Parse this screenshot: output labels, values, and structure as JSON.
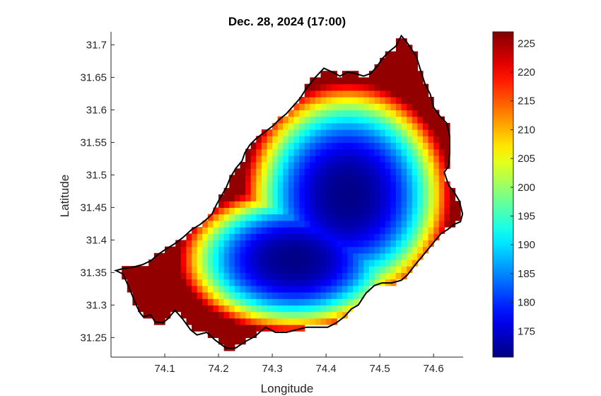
{
  "chart_data": {
    "type": "heatmap",
    "title": "Dec. 28, 2024 (17:00)",
    "xlabel": "Longitude",
    "ylabel": "Latitude",
    "xlim": [
      74.0,
      74.655
    ],
    "ylim": [
      31.22,
      31.72
    ],
    "xticks": [
      74.1,
      74.2,
      74.3,
      74.4,
      74.5,
      74.6
    ],
    "xtick_labels": [
      "74.1",
      "74.2",
      "74.3",
      "74.4",
      "74.5",
      "74.6"
    ],
    "yticks": [
      31.25,
      31.3,
      31.35,
      31.4,
      31.45,
      31.5,
      31.55,
      31.6,
      31.65,
      31.7
    ],
    "ytick_labels": [
      "31.25",
      "31.3",
      "31.35",
      "31.4",
      "31.45",
      "31.5",
      "31.55",
      "31.6",
      "31.65",
      "31.7"
    ],
    "colormap": "jet",
    "clim": [
      170.5,
      227
    ],
    "colorbar_ticks": [
      175,
      180,
      185,
      190,
      195,
      200,
      205,
      210,
      215,
      220,
      225
    ],
    "colorbar_tick_labels": [
      "175",
      "180",
      "185",
      "190",
      "195",
      "200",
      "205",
      "210",
      "215",
      "220",
      "225"
    ],
    "field": {
      "min_value": 171,
      "max_value": 226,
      "min_location": {
        "lon": 74.44,
        "lat": 31.47
      },
      "secondary_low": {
        "lon": 74.34,
        "lat": 31.37
      },
      "grid_step_deg": 0.01,
      "outline_color": "#000000"
    },
    "boundary": [
      [
        74.009,
        31.353
      ],
      [
        74.022,
        31.348
      ],
      [
        74.033,
        31.328
      ],
      [
        74.042,
        31.31
      ],
      [
        74.048,
        31.298
      ],
      [
        74.054,
        31.288
      ],
      [
        74.06,
        31.282
      ],
      [
        74.074,
        31.285
      ],
      [
        74.082,
        31.274
      ],
      [
        74.097,
        31.273
      ],
      [
        74.106,
        31.279
      ],
      [
        74.119,
        31.292
      ],
      [
        74.133,
        31.279
      ],
      [
        74.148,
        31.262
      ],
      [
        74.16,
        31.254
      ],
      [
        74.178,
        31.258
      ],
      [
        74.194,
        31.246
      ],
      [
        74.214,
        31.234
      ],
      [
        74.232,
        31.234
      ],
      [
        74.248,
        31.243
      ],
      [
        74.268,
        31.252
      ],
      [
        74.287,
        31.266
      ],
      [
        74.306,
        31.258
      ],
      [
        74.326,
        31.258
      ],
      [
        74.345,
        31.262
      ],
      [
        74.364,
        31.266
      ],
      [
        74.383,
        31.266
      ],
      [
        74.403,
        31.266
      ],
      [
        74.418,
        31.272
      ],
      [
        74.434,
        31.282
      ],
      [
        74.447,
        31.294
      ],
      [
        74.46,
        31.3
      ],
      [
        74.474,
        31.318
      ],
      [
        74.49,
        31.33
      ],
      [
        74.504,
        31.334
      ],
      [
        74.522,
        31.334
      ],
      [
        74.54,
        31.338
      ],
      [
        74.551,
        31.346
      ],
      [
        74.566,
        31.362
      ],
      [
        74.58,
        31.376
      ],
      [
        74.594,
        31.39
      ],
      [
        74.604,
        31.4
      ],
      [
        74.614,
        31.41
      ],
      [
        74.626,
        31.416
      ],
      [
        74.638,
        31.424
      ],
      [
        74.65,
        31.428
      ],
      [
        74.654,
        31.44
      ],
      [
        74.648,
        31.46
      ],
      [
        74.638,
        31.474
      ],
      [
        74.628,
        31.484
      ],
      [
        74.62,
        31.504
      ],
      [
        74.628,
        31.514
      ],
      [
        74.63,
        31.534
      ],
      [
        74.63,
        31.56
      ],
      [
        74.624,
        31.58
      ],
      [
        74.612,
        31.59
      ],
      [
        74.6,
        31.604
      ],
      [
        74.594,
        31.624
      ],
      [
        74.584,
        31.64
      ],
      [
        74.577,
        31.658
      ],
      [
        74.568,
        31.682
      ],
      [
        74.552,
        31.702
      ],
      [
        74.54,
        31.714
      ],
      [
        74.53,
        31.698
      ],
      [
        74.518,
        31.69
      ],
      [
        74.506,
        31.68
      ],
      [
        74.494,
        31.666
      ],
      [
        74.483,
        31.656
      ],
      [
        74.47,
        31.652
      ],
      [
        74.454,
        31.656
      ],
      [
        74.44,
        31.658
      ],
      [
        74.426,
        31.652
      ],
      [
        74.412,
        31.658
      ],
      [
        74.396,
        31.664
      ],
      [
        74.38,
        31.65
      ],
      [
        74.364,
        31.634
      ],
      [
        74.352,
        31.618
      ],
      [
        74.339,
        31.606
      ],
      [
        74.326,
        31.594
      ],
      [
        74.314,
        31.586
      ],
      [
        74.302,
        31.576
      ],
      [
        74.286,
        31.566
      ],
      [
        74.27,
        31.556
      ],
      [
        74.258,
        31.546
      ],
      [
        74.249,
        31.534
      ],
      [
        74.244,
        31.522
      ],
      [
        74.232,
        31.51
      ],
      [
        74.222,
        31.496
      ],
      [
        74.214,
        31.48
      ],
      [
        74.204,
        31.466
      ],
      [
        74.196,
        31.454
      ],
      [
        74.188,
        31.44
      ],
      [
        74.178,
        31.432
      ],
      [
        74.166,
        31.424
      ],
      [
        74.15,
        31.416
      ],
      [
        74.134,
        31.404
      ],
      [
        74.118,
        31.394
      ],
      [
        74.102,
        31.386
      ],
      [
        74.088,
        31.378
      ],
      [
        74.074,
        31.368
      ],
      [
        74.058,
        31.362
      ],
      [
        74.04,
        31.358
      ],
      [
        74.022,
        31.356
      ]
    ]
  }
}
